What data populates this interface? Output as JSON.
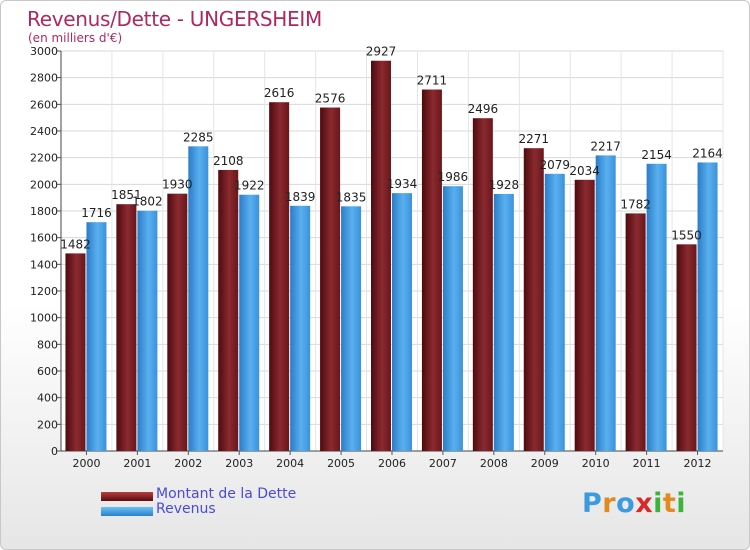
{
  "header": {
    "title": "Revenus/Dette - UNGERSHEIM",
    "subtitle": "(en milliers d'€)"
  },
  "chart_data": {
    "type": "bar",
    "categories": [
      "2000",
      "2001",
      "2002",
      "2003",
      "2004",
      "2005",
      "2006",
      "2007",
      "2008",
      "2009",
      "2010",
      "2011",
      "2012"
    ],
    "series": [
      {
        "name": "Montant de la Dette",
        "color": "#7a1c22",
        "values": [
          1482,
          1851,
          1930,
          2108,
          2616,
          2576,
          2927,
          2711,
          2496,
          2271,
          2034,
          1782,
          1550
        ]
      },
      {
        "name": "Revenus",
        "color": "#3c9ae0",
        "values": [
          1716,
          1802,
          2285,
          1922,
          1839,
          1835,
          1934,
          1986,
          1928,
          2079,
          2217,
          2154,
          2164
        ]
      }
    ],
    "yticks": [
      0,
      200,
      400,
      600,
      800,
      1000,
      1200,
      1400,
      1600,
      1800,
      2000,
      2200,
      2400,
      2600,
      2800,
      3000
    ],
    "ylim": [
      0,
      3000
    ],
    "grid": true,
    "legend_position": "bottom-left"
  },
  "logo": {
    "letters": [
      "P",
      "r",
      "o",
      "x",
      "i",
      "t",
      "i"
    ],
    "colors": [
      "#3c9ae0",
      "#e08a20",
      "#3c9ae0",
      "#d82828",
      "#3cb43c",
      "#e08a20",
      "#3cb43c"
    ]
  }
}
